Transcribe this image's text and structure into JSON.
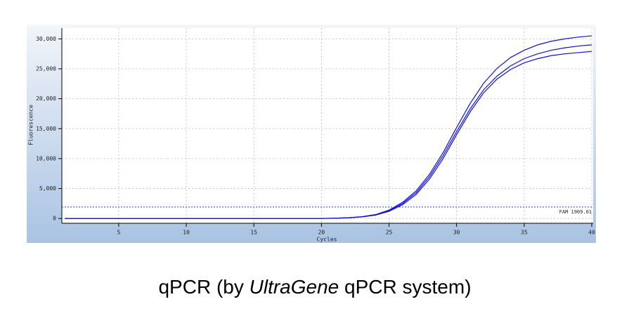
{
  "chart_data": {
    "type": "line",
    "x_label": "Cycles",
    "y_label": "Fluorescence",
    "x": [
      1,
      2,
      3,
      4,
      5,
      6,
      7,
      8,
      9,
      10,
      11,
      12,
      13,
      14,
      15,
      16,
      17,
      18,
      19,
      20,
      21,
      22,
      23,
      24,
      25,
      26,
      27,
      28,
      29,
      30,
      31,
      32,
      33,
      34,
      35,
      36,
      37,
      38,
      39,
      40
    ],
    "series": [
      {
        "color": "#1010e0",
        "values": [
          0,
          0,
          0,
          0,
          0,
          0,
          0,
          0,
          0,
          0,
          0,
          0,
          0,
          0,
          0,
          0,
          0,
          0,
          0,
          0,
          50,
          120,
          280,
          600,
          1300,
          2500,
          4300,
          7000,
          10500,
          14500,
          18300,
          21500,
          23800,
          25500,
          26700,
          27500,
          28100,
          28500,
          28800,
          29000
        ]
      },
      {
        "color": "#1010e0",
        "values": [
          0,
          0,
          0,
          0,
          0,
          0,
          0,
          0,
          0,
          0,
          0,
          0,
          0,
          0,
          0,
          0,
          0,
          0,
          0,
          0,
          45,
          110,
          260,
          560,
          1200,
          2300,
          4000,
          6600,
          10000,
          14000,
          17800,
          21000,
          23300,
          24900,
          26000,
          26700,
          27200,
          27500,
          27700,
          27900
        ]
      },
      {
        "color": "#1010e0",
        "values": [
          0,
          0,
          0,
          0,
          0,
          0,
          0,
          0,
          0,
          0,
          0,
          0,
          0,
          0,
          0,
          0,
          0,
          0,
          0,
          0,
          55,
          130,
          300,
          650,
          1400,
          2700,
          4600,
          7400,
          11000,
          15200,
          19200,
          22600,
          25100,
          26900,
          28100,
          29000,
          29600,
          30000,
          30300,
          30500
        ]
      }
    ],
    "threshold": 1909.01,
    "threshold_label": "FAM 1909.01",
    "threshold_color": "#3030e0",
    "xlim": [
      1,
      40
    ],
    "xticks": [
      5,
      10,
      15,
      20,
      25,
      30,
      35,
      40
    ],
    "ylim": [
      -800,
      31800
    ],
    "yticks": [
      {
        "value": 0,
        "label": "0"
      },
      {
        "value": 5000,
        "label": "5,000"
      },
      {
        "value": 10000,
        "label": "10,000"
      },
      {
        "value": 15000,
        "label": "15,000"
      },
      {
        "value": 20000,
        "label": "20,000"
      },
      {
        "value": 25000,
        "label": "25,000"
      },
      {
        "value": 30000,
        "label": "30,000"
      }
    ],
    "grid": true
  },
  "caption": {
    "before": "qPCR (by ",
    "italic": "UltraGene",
    "after": " qPCR system)"
  }
}
